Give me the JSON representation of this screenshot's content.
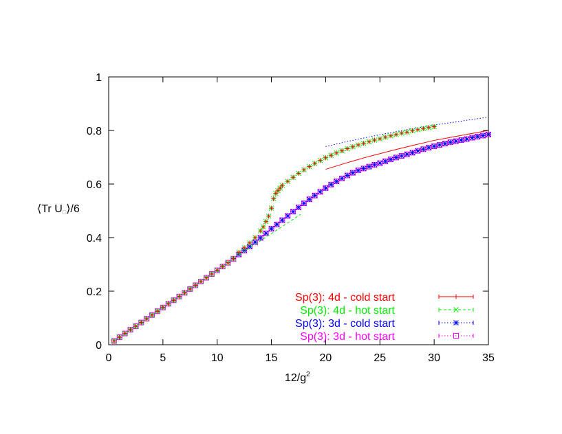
{
  "chart_data": {
    "type": "scatter",
    "title": "",
    "xlabel_parts": [
      "12/g",
      "2"
    ],
    "ylabel_parts": [
      "⟨Tr U",
      "□",
      "⟩/6"
    ],
    "xlim": [
      0,
      35
    ],
    "ylim": [
      0,
      1
    ],
    "xticks": [
      "0",
      "5",
      "10",
      "15",
      "20",
      "25",
      "30",
      "35"
    ],
    "yticks": [
      "0",
      "0.2",
      "0.4",
      "0.6",
      "0.8",
      "1"
    ],
    "grid": false,
    "legend_position": "bottom-right",
    "series": [
      {
        "name": "Sp(3): 4d - cold start",
        "color": "#ff0000",
        "marker": "plus",
        "line_style": "solid",
        "x": [
          0.5,
          1,
          1.5,
          2,
          2.5,
          3,
          3.5,
          4,
          4.5,
          5,
          5.5,
          6,
          6.5,
          7,
          7.5,
          8,
          8.5,
          9,
          9.5,
          10,
          10.5,
          11,
          11.5,
          12,
          12.5,
          13,
          13.5,
          14,
          14.25,
          14.5,
          14.75,
          15,
          15.2,
          15.4,
          15.6,
          15.8,
          16,
          16.5,
          17,
          17.5,
          18,
          18.5,
          19,
          19.5,
          20,
          20.5,
          21,
          21.5,
          22,
          22.5,
          23,
          23.5,
          24,
          24.5,
          25,
          25.5,
          26,
          26.5,
          27,
          27.5,
          28,
          28.5,
          29,
          29.5,
          30
        ],
        "y": [
          0.014,
          0.028,
          0.042,
          0.056,
          0.069,
          0.083,
          0.097,
          0.111,
          0.125,
          0.139,
          0.153,
          0.166,
          0.18,
          0.194,
          0.208,
          0.222,
          0.236,
          0.25,
          0.264,
          0.278,
          0.292,
          0.306,
          0.322,
          0.345,
          0.362,
          0.38,
          0.4,
          0.425,
          0.44,
          0.46,
          0.48,
          0.51,
          0.545,
          0.565,
          0.575,
          0.585,
          0.595,
          0.61,
          0.625,
          0.64,
          0.653,
          0.665,
          0.677,
          0.688,
          0.698,
          0.707,
          0.716,
          0.724,
          0.732,
          0.739,
          0.746,
          0.752,
          0.758,
          0.764,
          0.769,
          0.775,
          0.78,
          0.785,
          0.79,
          0.794,
          0.799,
          0.803,
          0.807,
          0.811,
          0.814
        ],
        "line": {
          "x": [
            20,
            22,
            24,
            26,
            28,
            30,
            32,
            35
          ],
          "y": [
            0.655,
            0.68,
            0.703,
            0.724,
            0.744,
            0.763,
            0.778,
            0.8
          ]
        }
      },
      {
        "name": "Sp(3): 4d - hot start",
        "color": "#00ee00",
        "marker": "cross",
        "line_style": "dashed",
        "x": [
          0.5,
          1,
          1.5,
          2,
          2.5,
          3,
          3.5,
          4,
          4.5,
          5,
          5.5,
          6,
          6.5,
          7,
          7.5,
          8,
          8.5,
          9,
          9.5,
          10,
          10.5,
          11,
          11.5,
          12,
          12.5,
          13,
          13.5,
          14,
          14.25,
          14.5,
          14.75,
          15,
          15.2,
          15.4,
          15.6,
          15.8,
          16,
          16.5,
          17,
          17.5,
          18,
          18.5,
          19,
          19.5,
          20,
          20.5,
          21,
          21.5,
          22,
          22.5,
          23,
          23.5,
          24,
          24.5,
          25,
          25.5,
          26,
          26.5,
          27,
          27.5,
          28,
          28.5,
          29,
          29.5,
          30
        ],
        "y": [
          0.014,
          0.028,
          0.042,
          0.056,
          0.069,
          0.083,
          0.097,
          0.111,
          0.125,
          0.139,
          0.153,
          0.166,
          0.18,
          0.194,
          0.208,
          0.222,
          0.236,
          0.25,
          0.264,
          0.278,
          0.292,
          0.306,
          0.322,
          0.345,
          0.362,
          0.38,
          0.4,
          0.425,
          0.44,
          0.46,
          0.48,
          0.51,
          0.545,
          0.565,
          0.575,
          0.585,
          0.595,
          0.61,
          0.625,
          0.64,
          0.653,
          0.665,
          0.677,
          0.688,
          0.698,
          0.707,
          0.716,
          0.724,
          0.732,
          0.739,
          0.746,
          0.752,
          0.758,
          0.764,
          0.769,
          0.775,
          0.78,
          0.785,
          0.79,
          0.794,
          0.799,
          0.803,
          0.807,
          0.811,
          0.814
        ],
        "line": {
          "x": [
            12,
            17.7
          ],
          "y": [
            0.335,
            0.487
          ]
        }
      },
      {
        "name": "Sp(3): 3d - cold start",
        "color": "#0000ff",
        "marker": "star",
        "line_style": "dotted",
        "x": [
          0.5,
          1,
          1.5,
          2,
          2.5,
          3,
          3.5,
          4,
          4.5,
          5,
          5.5,
          6,
          6.5,
          7,
          7.5,
          8,
          8.5,
          9,
          9.5,
          10,
          10.5,
          11,
          11.5,
          12,
          12.5,
          13,
          13.5,
          14,
          14.5,
          15,
          15.5,
          16,
          16.5,
          17,
          17.5,
          18,
          18.5,
          19,
          19.5,
          20,
          20.5,
          21,
          21.5,
          22,
          22.5,
          23,
          23.5,
          24,
          24.5,
          25,
          25.5,
          26,
          26.5,
          27,
          27.5,
          28,
          28.5,
          29,
          29.5,
          30,
          30.5,
          31,
          31.5,
          32,
          32.5,
          33,
          33.5,
          34,
          34.5,
          35
        ],
        "y": [
          0.014,
          0.028,
          0.042,
          0.056,
          0.069,
          0.083,
          0.097,
          0.111,
          0.125,
          0.139,
          0.153,
          0.166,
          0.18,
          0.194,
          0.208,
          0.222,
          0.236,
          0.25,
          0.264,
          0.278,
          0.292,
          0.306,
          0.321,
          0.337,
          0.352,
          0.367,
          0.383,
          0.399,
          0.416,
          0.433,
          0.449,
          0.465,
          0.481,
          0.497,
          0.513,
          0.528,
          0.543,
          0.557,
          0.571,
          0.585,
          0.598,
          0.61,
          0.621,
          0.632,
          0.642,
          0.651,
          0.658,
          0.665,
          0.672,
          0.678,
          0.685,
          0.692,
          0.699,
          0.705,
          0.711,
          0.717,
          0.724,
          0.73,
          0.736,
          0.741,
          0.746,
          0.751,
          0.756,
          0.76,
          0.764,
          0.768,
          0.773,
          0.777,
          0.781,
          0.785
        ],
        "line": {
          "x": [
            20,
            22,
            24,
            26,
            28,
            30,
            32,
            35
          ],
          "y": [
            0.74,
            0.759,
            0.776,
            0.792,
            0.807,
            0.82,
            0.832,
            0.85
          ]
        }
      },
      {
        "name": "Sp(3): 3d - hot start",
        "color": "#ff00ff",
        "marker": "square",
        "line_style": "dotted",
        "x": [
          0.5,
          1,
          1.5,
          2,
          2.5,
          3,
          3.5,
          4,
          4.5,
          5,
          5.5,
          6,
          6.5,
          7,
          7.5,
          8,
          8.5,
          9,
          9.5,
          10,
          10.5,
          11,
          11.5,
          12,
          12.5,
          13,
          13.5,
          14,
          14.5,
          15,
          15.5,
          16,
          16.5,
          17,
          17.5,
          18,
          18.5,
          19,
          19.5,
          20,
          20.5,
          21,
          21.5,
          22,
          22.5,
          23,
          23.5,
          24,
          24.5,
          25,
          25.5,
          26,
          26.5,
          27,
          27.5,
          28,
          28.5,
          29,
          29.5,
          30,
          30.5,
          31,
          31.5,
          32,
          32.5,
          33,
          33.5,
          34,
          34.5,
          35
        ],
        "y": [
          0.014,
          0.028,
          0.042,
          0.056,
          0.069,
          0.083,
          0.097,
          0.111,
          0.125,
          0.139,
          0.153,
          0.166,
          0.18,
          0.194,
          0.208,
          0.222,
          0.236,
          0.25,
          0.264,
          0.278,
          0.292,
          0.306,
          0.321,
          0.337,
          0.352,
          0.367,
          0.383,
          0.399,
          0.416,
          0.433,
          0.449,
          0.465,
          0.481,
          0.497,
          0.513,
          0.528,
          0.543,
          0.557,
          0.571,
          0.585,
          0.598,
          0.61,
          0.621,
          0.632,
          0.642,
          0.651,
          0.658,
          0.665,
          0.672,
          0.678,
          0.685,
          0.692,
          0.699,
          0.705,
          0.711,
          0.717,
          0.724,
          0.73,
          0.736,
          0.741,
          0.746,
          0.751,
          0.756,
          0.76,
          0.764,
          0.768,
          0.773,
          0.777,
          0.781,
          0.785
        ]
      }
    ]
  }
}
